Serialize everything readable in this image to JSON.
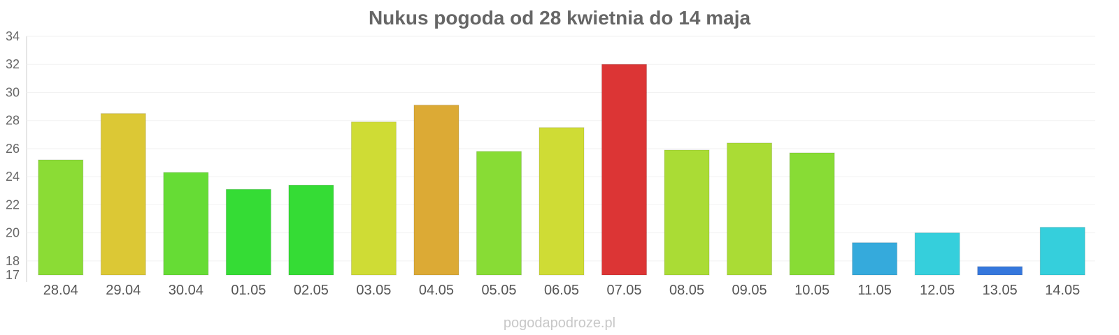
{
  "chart_data": {
    "type": "bar",
    "title": "Nukus pogoda od 28 kwietnia do 14 maja",
    "xlabel": "",
    "ylabel": "",
    "ylim": [
      17,
      34
    ],
    "yticks": [
      17,
      18,
      20,
      22,
      24,
      26,
      28,
      30,
      32,
      34
    ],
    "grid": true,
    "categories": [
      "28.04",
      "29.04",
      "30.04",
      "01.05",
      "02.05",
      "03.05",
      "04.05",
      "05.05",
      "06.05",
      "07.05",
      "08.05",
      "09.05",
      "10.05",
      "11.05",
      "12.05",
      "13.05",
      "14.05"
    ],
    "values": [
      25.2,
      28.5,
      24.3,
      23.1,
      23.4,
      27.9,
      29.1,
      25.8,
      27.5,
      32.0,
      25.9,
      26.4,
      25.7,
      19.3,
      20.0,
      17.6,
      20.4
    ],
    "colors": [
      "#8bdc35",
      "#dcc835",
      "#66dc35",
      "#35dc35",
      "#35dc35",
      "#cfdc35",
      "#dcaa35",
      "#88dc35",
      "#cfdc35",
      "#dc3535",
      "#aadc35",
      "#aadc35",
      "#88dc35",
      "#35aadc",
      "#35cfdc",
      "#3577dc",
      "#35cfdc"
    ]
  },
  "watermark": "pogodapodroze.pl"
}
